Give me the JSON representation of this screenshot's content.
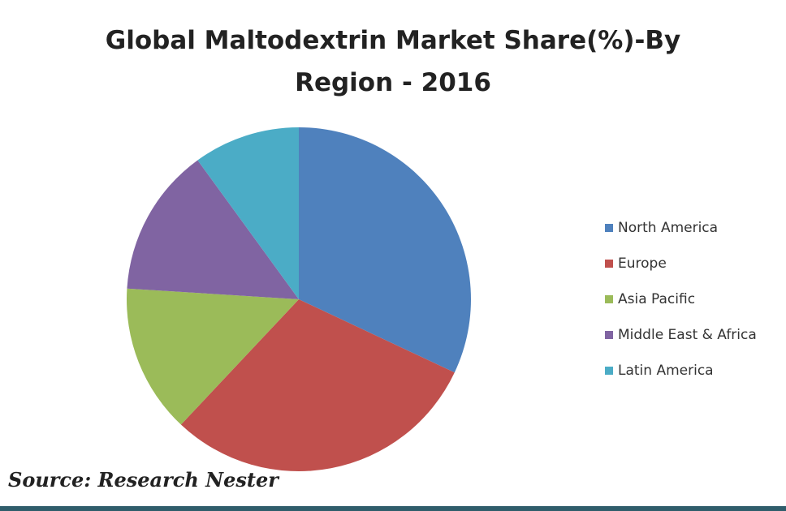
{
  "chart_data": {
    "type": "pie",
    "title": [
      "Global  Maltodextrin Market Share(%)-By",
      "Region - 2016"
    ],
    "categories": [
      "North America",
      "Europe",
      "Asia Pacific",
      "Middle East & Africa",
      "Latin America"
    ],
    "values": [
      32,
      30,
      14,
      14,
      10
    ],
    "colors": [
      "#4f81bd",
      "#c0504d",
      "#9bbb59",
      "#8064a2",
      "#4bacc6"
    ],
    "legend": "right",
    "source": "Source: Research Nester"
  }
}
